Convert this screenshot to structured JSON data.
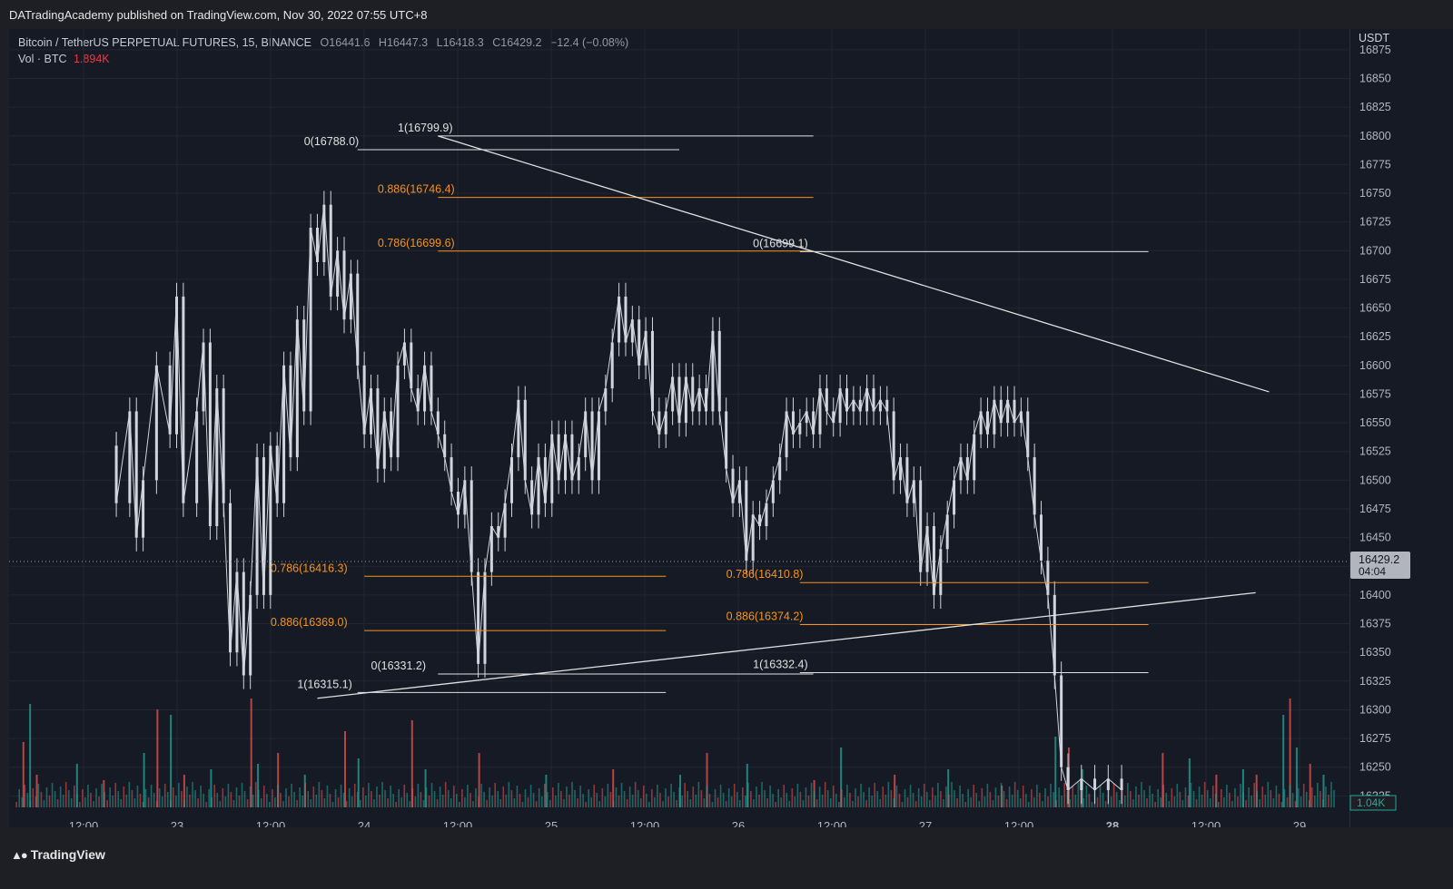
{
  "header": {
    "published": "DATradingAcademy published on TradingView.com, Nov 30, 2022 07:55 UTC+8"
  },
  "legend": {
    "symbol": "Bitcoin / TetherUS PERPETUAL FUTURES, 15, BINANCE",
    "o_label": "O",
    "o": "16441.6",
    "h_label": "H",
    "h": "16447.3",
    "l_label": "L",
    "l": "16418.3",
    "c_label": "C",
    "c": "16429.2",
    "change": "−12.4 (−0.08%)",
    "vol_label": "Vol · BTC",
    "vol_value": "1.894K"
  },
  "footer": {
    "brand": "TradingView"
  },
  "colors": {
    "background": "#161a25",
    "candle": "#d1d4dc",
    "fib_orange": "#f7931a",
    "line_white": "#e0e0e0",
    "vol_up": "#26a69a",
    "vol_down": "#ef5350"
  },
  "chart_data": {
    "type": "candlestick",
    "currency_label": "USDT",
    "ylim": [
      16215,
      16882
    ],
    "y_ticks": [
      16875,
      16850,
      16825,
      16800,
      16775,
      16750,
      16725,
      16700,
      16675,
      16650,
      16625,
      16600,
      16575,
      16550,
      16525,
      16500,
      16475,
      16450,
      16425,
      16400,
      16375,
      16350,
      16325,
      16300,
      16275,
      16250,
      16225
    ],
    "x_ticks": [
      "12:00",
      "23",
      "12:00",
      "24",
      "12:00",
      "25",
      "12:00",
      "26",
      "12:00",
      "27",
      "12:00",
      "28",
      "12:00",
      "29"
    ],
    "x_tick_bold": [
      false,
      false,
      false,
      false,
      false,
      false,
      false,
      false,
      false,
      false,
      false,
      true,
      false,
      false
    ],
    "last_price": "16429.2",
    "last_price_timer": "04:04",
    "volume_badge": "1.04K",
    "price_path": [
      [
        0.08,
        16530
      ],
      [
        0.08,
        16480
      ],
      [
        0.09,
        16560
      ],
      [
        0.095,
        16450
      ],
      [
        0.1,
        16500
      ],
      [
        0.11,
        16600
      ],
      [
        0.12,
        16540
      ],
      [
        0.125,
        16660
      ],
      [
        0.13,
        16480
      ],
      [
        0.14,
        16560
      ],
      [
        0.145,
        16620
      ],
      [
        0.15,
        16460
      ],
      [
        0.155,
        16580
      ],
      [
        0.16,
        16480
      ],
      [
        0.165,
        16350
      ],
      [
        0.17,
        16420
      ],
      [
        0.175,
        16330
      ],
      [
        0.18,
        16400
      ],
      [
        0.185,
        16520
      ],
      [
        0.19,
        16400
      ],
      [
        0.195,
        16530
      ],
      [
        0.2,
        16480
      ],
      [
        0.205,
        16600
      ],
      [
        0.21,
        16520
      ],
      [
        0.215,
        16640
      ],
      [
        0.22,
        16560
      ],
      [
        0.225,
        16720
      ],
      [
        0.23,
        16690
      ],
      [
        0.235,
        16740
      ],
      [
        0.24,
        16660
      ],
      [
        0.245,
        16700
      ],
      [
        0.25,
        16640
      ],
      [
        0.255,
        16680
      ],
      [
        0.26,
        16600
      ],
      [
        0.265,
        16540
      ],
      [
        0.27,
        16580
      ],
      [
        0.275,
        16510
      ],
      [
        0.28,
        16560
      ],
      [
        0.285,
        16520
      ],
      [
        0.29,
        16600
      ],
      [
        0.295,
        16620
      ],
      [
        0.3,
        16580
      ],
      [
        0.305,
        16560
      ],
      [
        0.31,
        16600
      ],
      [
        0.315,
        16560
      ],
      [
        0.32,
        16540
      ],
      [
        0.325,
        16520
      ],
      [
        0.33,
        16490
      ],
      [
        0.335,
        16470
      ],
      [
        0.34,
        16500
      ],
      [
        0.345,
        16420
      ],
      [
        0.35,
        16340
      ],
      [
        0.355,
        16420
      ],
      [
        0.36,
        16460
      ],
      [
        0.365,
        16450
      ],
      [
        0.37,
        16480
      ],
      [
        0.375,
        16520
      ],
      [
        0.38,
        16570
      ],
      [
        0.385,
        16500
      ],
      [
        0.39,
        16470
      ],
      [
        0.395,
        16520
      ],
      [
        0.4,
        16480
      ],
      [
        0.405,
        16540
      ],
      [
        0.41,
        16500
      ],
      [
        0.415,
        16540
      ],
      [
        0.42,
        16500
      ],
      [
        0.425,
        16520
      ],
      [
        0.43,
        16560
      ],
      [
        0.435,
        16500
      ],
      [
        0.44,
        16560
      ],
      [
        0.445,
        16580
      ],
      [
        0.45,
        16620
      ],
      [
        0.455,
        16660
      ],
      [
        0.46,
        16620
      ],
      [
        0.465,
        16640
      ],
      [
        0.47,
        16600
      ],
      [
        0.475,
        16630
      ],
      [
        0.48,
        16560
      ],
      [
        0.485,
        16540
      ],
      [
        0.49,
        16560
      ],
      [
        0.495,
        16590
      ],
      [
        0.5,
        16550
      ],
      [
        0.505,
        16590
      ],
      [
        0.51,
        16560
      ],
      [
        0.515,
        16580
      ],
      [
        0.52,
        16560
      ],
      [
        0.525,
        16630
      ],
      [
        0.53,
        16560
      ],
      [
        0.535,
        16510
      ],
      [
        0.54,
        16480
      ],
      [
        0.545,
        16500
      ],
      [
        0.55,
        16430
      ],
      [
        0.555,
        16470
      ],
      [
        0.56,
        16460
      ],
      [
        0.565,
        16480
      ],
      [
        0.57,
        16500
      ],
      [
        0.575,
        16520
      ],
      [
        0.58,
        16560
      ],
      [
        0.585,
        16540
      ],
      [
        0.59,
        16550
      ],
      [
        0.595,
        16560
      ],
      [
        0.6,
        16540
      ],
      [
        0.605,
        16580
      ],
      [
        0.61,
        16560
      ],
      [
        0.615,
        16550
      ],
      [
        0.62,
        16580
      ],
      [
        0.625,
        16560
      ],
      [
        0.63,
        16570
      ],
      [
        0.635,
        16560
      ],
      [
        0.64,
        16580
      ],
      [
        0.645,
        16560
      ],
      [
        0.65,
        16570
      ],
      [
        0.655,
        16560
      ],
      [
        0.66,
        16500
      ],
      [
        0.665,
        16520
      ],
      [
        0.67,
        16480
      ],
      [
        0.675,
        16500
      ],
      [
        0.68,
        16420
      ],
      [
        0.685,
        16460
      ],
      [
        0.69,
        16400
      ],
      [
        0.695,
        16440
      ],
      [
        0.7,
        16470
      ],
      [
        0.705,
        16500
      ],
      [
        0.71,
        16520
      ],
      [
        0.715,
        16500
      ],
      [
        0.72,
        16540
      ],
      [
        0.725,
        16560
      ],
      [
        0.73,
        16540
      ],
      [
        0.735,
        16570
      ],
      [
        0.74,
        16550
      ],
      [
        0.745,
        16570
      ],
      [
        0.75,
        16550
      ],
      [
        0.755,
        16560
      ],
      [
        0.76,
        16520
      ],
      [
        0.765,
        16470
      ],
      [
        0.77,
        16430
      ],
      [
        0.775,
        16400
      ],
      [
        0.78,
        16330
      ],
      [
        0.785,
        16250
      ],
      [
        0.79,
        16230
      ],
      [
        0.8,
        16240
      ],
      [
        0.81,
        16230
      ],
      [
        0.82,
        16240
      ],
      [
        0.83,
        16230
      ]
    ],
    "volume_spikes": [
      [
        0.01,
        0.6
      ],
      [
        0.015,
        0.95
      ],
      [
        0.02,
        0.3
      ],
      [
        0.05,
        0.4
      ],
      [
        0.07,
        0.25
      ],
      [
        0.1,
        0.5
      ],
      [
        0.11,
        0.9
      ],
      [
        0.12,
        0.85
      ],
      [
        0.13,
        0.3
      ],
      [
        0.15,
        0.35
      ],
      [
        0.18,
        1.0
      ],
      [
        0.185,
        0.4
      ],
      [
        0.2,
        0.5
      ],
      [
        0.22,
        0.3
      ],
      [
        0.25,
        0.7
      ],
      [
        0.26,
        0.45
      ],
      [
        0.3,
        0.8
      ],
      [
        0.31,
        0.35
      ],
      [
        0.35,
        0.5
      ],
      [
        0.4,
        0.3
      ],
      [
        0.45,
        0.35
      ],
      [
        0.5,
        0.3
      ],
      [
        0.52,
        0.5
      ],
      [
        0.55,
        0.4
      ],
      [
        0.6,
        0.25
      ],
      [
        0.62,
        0.55
      ],
      [
        0.66,
        0.3
      ],
      [
        0.7,
        0.35
      ],
      [
        0.74,
        0.2
      ],
      [
        0.78,
        0.65
      ],
      [
        0.79,
        0.55
      ],
      [
        0.8,
        0.35
      ],
      [
        0.86,
        0.5
      ],
      [
        0.88,
        0.45
      ],
      [
        0.9,
        0.3
      ],
      [
        0.92,
        0.35
      ],
      [
        0.93,
        0.3
      ],
      [
        0.95,
        0.85
      ],
      [
        0.955,
        1.0
      ],
      [
        0.96,
        0.55
      ],
      [
        0.97,
        0.4
      ],
      [
        0.98,
        0.3
      ]
    ],
    "fib_sets": [
      {
        "color": "#d1d4dc",
        "levels": [
          {
            "label": "1(16799.9)",
            "price": 16799.9,
            "x1": 0.32,
            "x2": 0.6,
            "orange": false,
            "text_x": 0.29
          },
          {
            "label": "0(16788.0)",
            "price": 16788.0,
            "x1": 0.26,
            "x2": 0.5,
            "orange": false,
            "text_x": 0.22
          },
          {
            "label": "0.886(16746.4)",
            "price": 16746.4,
            "x1": 0.32,
            "x2": 0.6,
            "orange": true,
            "text_x": 0.275
          },
          {
            "label": "0.786(16699.6)",
            "price": 16699.6,
            "x1": 0.32,
            "x2": 0.6,
            "orange": true,
            "text_x": 0.275
          }
        ]
      },
      {
        "color": "#d1d4dc",
        "levels": [
          {
            "label": "0(16699.1)",
            "price": 16699.1,
            "x1": 0.59,
            "x2": 0.85,
            "orange": false,
            "text_x": 0.555
          },
          {
            "label": "0.786(16410.8)",
            "price": 16410.8,
            "x1": 0.59,
            "x2": 0.85,
            "orange": true,
            "text_x": 0.535
          },
          {
            "label": "0.886(16374.2)",
            "price": 16374.2,
            "x1": 0.59,
            "x2": 0.85,
            "orange": true,
            "text_x": 0.535
          },
          {
            "label": "1(16332.4)",
            "price": 16332.4,
            "x1": 0.59,
            "x2": 0.85,
            "orange": false,
            "text_x": 0.555
          }
        ]
      },
      {
        "color": "#d1d4dc",
        "levels": [
          {
            "label": "0.786(16416.3)",
            "price": 16416.3,
            "x1": 0.265,
            "x2": 0.49,
            "orange": true,
            "text_x": 0.195
          },
          {
            "label": "0.886(16369.0)",
            "price": 16369.0,
            "x1": 0.265,
            "x2": 0.49,
            "orange": true,
            "text_x": 0.195
          },
          {
            "label": "0(16331.2)",
            "price": 16331.2,
            "x1": 0.32,
            "x2": 0.6,
            "orange": false,
            "text_x": 0.27
          },
          {
            "label": "1(16315.1)",
            "price": 16315.1,
            "x1": 0.26,
            "x2": 0.49,
            "orange": false,
            "text_x": 0.215
          }
        ]
      }
    ],
    "trendlines": [
      {
        "p1": [
          0.32,
          16799.9
        ],
        "p2": [
          0.94,
          16577
        ]
      },
      {
        "p1": [
          0.23,
          16310
        ],
        "p2": [
          0.93,
          16402
        ]
      }
    ]
  }
}
